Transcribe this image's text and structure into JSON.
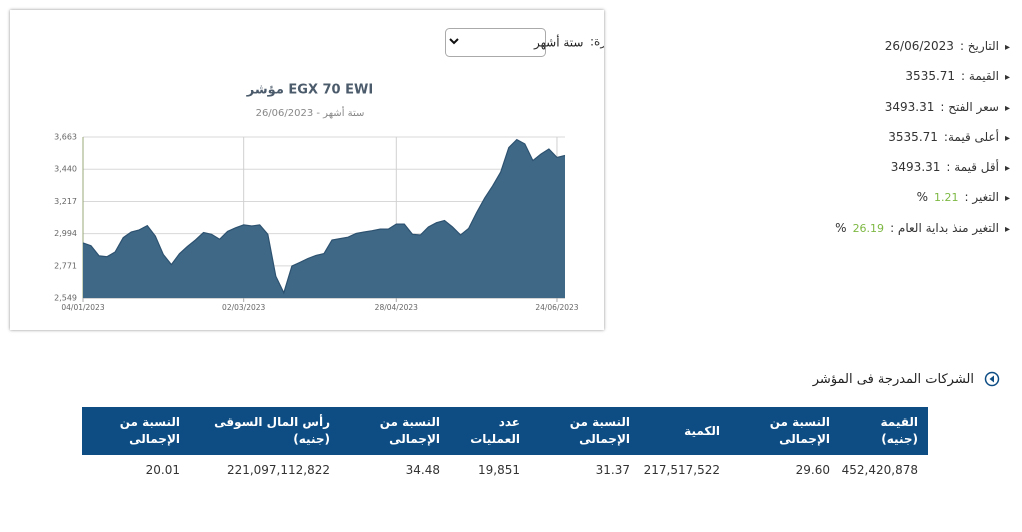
{
  "filter": {
    "label": "الفترة:",
    "selected": "ستة أشهر"
  },
  "chart_data": {
    "type": "area",
    "title": "مؤشر EGX 70 EWI",
    "subtitle": "ستة أشهر - 26/06/2023",
    "color": "#3f6887",
    "line_color": "#2d5270",
    "categories": [
      "04/01/2023",
      null,
      null,
      null,
      null,
      null,
      null,
      null,
      null,
      null,
      null,
      null,
      null,
      null,
      null,
      null,
      null,
      null,
      null,
      null,
      "02/03/2023",
      null,
      null,
      null,
      null,
      null,
      null,
      null,
      null,
      null,
      null,
      null,
      null,
      null,
      null,
      null,
      null,
      null,
      null,
      "28/04/2023",
      null,
      null,
      null,
      null,
      null,
      null,
      null,
      null,
      null,
      null,
      null,
      null,
      null,
      null,
      null,
      null,
      null,
      null,
      null,
      "24/06/2023",
      null
    ],
    "values": [
      2930,
      2911,
      2840,
      2835,
      2867,
      2966,
      3006,
      3020,
      3050,
      2978,
      2850,
      2780,
      2855,
      2905,
      2950,
      3002,
      2990,
      2955,
      3010,
      3035,
      3055,
      3047,
      3055,
      2990,
      2700,
      2585,
      2770,
      2795,
      2822,
      2844,
      2856,
      2950,
      2960,
      2970,
      2995,
      3006,
      3015,
      3026,
      3026,
      3060,
      3060,
      2990,
      2985,
      3040,
      3070,
      3085,
      3040,
      2985,
      3030,
      3140,
      3240,
      3325,
      3420,
      3590,
      3645,
      3615,
      3500,
      3545,
      3580,
      3522,
      3535
    ],
    "ylim": [
      2549,
      3663
    ],
    "yticks": [
      {
        "value": 2549,
        "label": "2,549"
      },
      {
        "value": 2771,
        "label": "2,771"
      },
      {
        "value": 2994,
        "label": "2,994"
      },
      {
        "value": 3217,
        "label": "3,217"
      },
      {
        "value": 3440,
        "label": "3,440"
      },
      {
        "value": 3663,
        "label": "3,663"
      }
    ],
    "grid": true
  },
  "summary": [
    {
      "label": "التاريخ :",
      "value": "26/06/2023"
    },
    {
      "label": "القيمة :",
      "value": "3535.71"
    },
    {
      "label": "سعر الفتح :",
      "value": "3493.31"
    },
    {
      "label": "أعلى قيمة:",
      "value": "3535.71"
    },
    {
      "label": "أقل قيمة :",
      "value": "3493.31"
    },
    {
      "label": "التغير :",
      "value": "1.21",
      "unit": "%"
    },
    {
      "label": "التغير منذ بداية العام :",
      "value": "26.19",
      "unit": "%"
    }
  ],
  "section_title": "الشركات المدرجة فى المؤشر",
  "table": {
    "headers": [
      "القيمة (جنيه)",
      "النسبة من الإجمالى",
      "الكمية",
      "النسبة من الإجمالى",
      "عدد العمليات",
      "النسبة من الإجمالى",
      "رأس المال السوقى (جنيه)",
      "النسبة من الإجمالى"
    ],
    "rows": [
      [
        "452,420,878",
        "29.60",
        "217,517,522",
        "31.37",
        "19,851",
        "34.48",
        "221,097,112,822",
        "20.01"
      ]
    ]
  }
}
